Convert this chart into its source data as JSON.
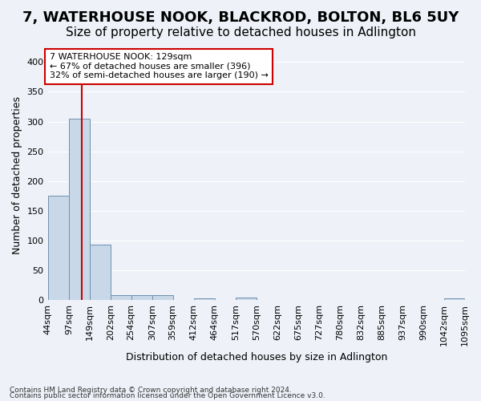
{
  "title": "7, WATERHOUSE NOOK, BLACKROD, BOLTON, BL6 5UY",
  "subtitle": "Size of property relative to detached houses in Adlington",
  "xlabel": "Distribution of detached houses by size in Adlington",
  "ylabel": "Number of detached properties",
  "footnote1": "Contains HM Land Registry data © Crown copyright and database right 2024.",
  "footnote2": "Contains public sector information licensed under the Open Government Licence v3.0.",
  "annotation_line1": "7 WATERHOUSE NOOK: 129sqm",
  "annotation_line2": "← 67% of detached houses are smaller (396)",
  "annotation_line3": "32% of semi-detached houses are larger (190) →",
  "bar_edges": [
    44,
    97,
    149,
    202,
    254,
    307,
    359,
    412,
    464,
    517,
    570,
    622,
    675,
    727,
    780,
    832,
    885,
    937,
    990,
    1042,
    1095
  ],
  "bar_heights": [
    175,
    305,
    93,
    8,
    9,
    9,
    0,
    3,
    0,
    4,
    0,
    0,
    0,
    0,
    0,
    0,
    0,
    0,
    0,
    3
  ],
  "bar_color": "#c8d8e8",
  "bar_edge_color": "#7090b0",
  "vline_x": 129,
  "vline_color": "#cc0000",
  "bg_color": "#eef2f8",
  "plot_bg_color": "#eef2f8",
  "ylim": [
    0,
    420
  ],
  "yticks": [
    0,
    50,
    100,
    150,
    200,
    250,
    300,
    350,
    400
  ],
  "grid_color": "#ffffff",
  "annotation_box_color": "#cc0000",
  "title_fontsize": 13,
  "subtitle_fontsize": 11,
  "tick_fontsize": 8,
  "label_fontsize": 9
}
